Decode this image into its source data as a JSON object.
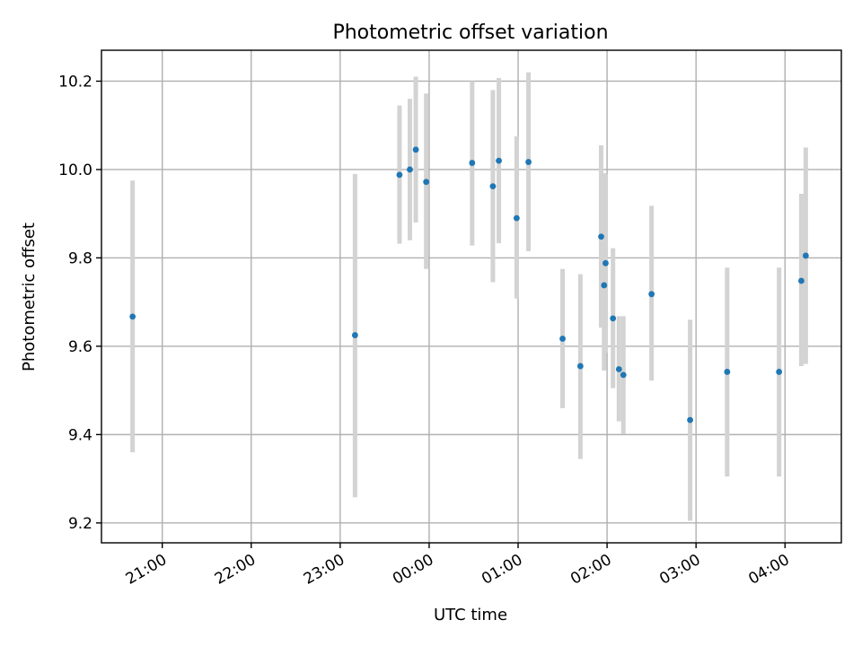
{
  "chart_data": {
    "type": "scatter",
    "title": "Photometric offset variation",
    "xlabel": "UTC time",
    "ylabel": "Photometric offset",
    "grid": true,
    "x_is_time": true,
    "xlim": [
      "20:19",
      "04:38"
    ],
    "ylim": [
      9.155,
      10.27
    ],
    "x_ticks": [
      "21:00",
      "22:00",
      "23:00",
      "00:00",
      "01:00",
      "02:00",
      "03:00",
      "04:00"
    ],
    "y_ticks": [
      9.2,
      9.4,
      9.6,
      9.8,
      10.0,
      10.2
    ],
    "y_tick_labels": [
      "9.2",
      "9.4",
      "9.6",
      "9.8",
      "10.0",
      "10.2"
    ],
    "colors": {
      "points": "#1f77b4",
      "errorbars": "#d3d3d3",
      "grid": "#b0b0b0"
    },
    "points": [
      {
        "x": "20:40",
        "y": 9.667,
        "ylo": 9.36,
        "yhi": 9.975
      },
      {
        "x": "23:10",
        "y": 9.625,
        "ylo": 9.258,
        "yhi": 9.99
      },
      {
        "x": "23:40",
        "y": 9.988,
        "ylo": 9.832,
        "yhi": 10.145
      },
      {
        "x": "23:47",
        "y": 10.0,
        "ylo": 9.84,
        "yhi": 10.16
      },
      {
        "x": "23:51",
        "y": 10.045,
        "ylo": 9.88,
        "yhi": 10.21
      },
      {
        "x": "23:58",
        "y": 9.972,
        "ylo": 9.775,
        "yhi": 10.172
      },
      {
        "x": "00:29",
        "y": 10.015,
        "ylo": 9.828,
        "yhi": 10.2
      },
      {
        "x": "00:43",
        "y": 9.962,
        "ylo": 9.745,
        "yhi": 10.18
      },
      {
        "x": "00:47",
        "y": 10.02,
        "ylo": 9.833,
        "yhi": 10.207
      },
      {
        "x": "00:59",
        "y": 9.89,
        "ylo": 9.708,
        "yhi": 10.075
      },
      {
        "x": "01:07",
        "y": 10.017,
        "ylo": 9.815,
        "yhi": 10.22
      },
      {
        "x": "01:30",
        "y": 9.617,
        "ylo": 9.46,
        "yhi": 9.775
      },
      {
        "x": "01:42",
        "y": 9.555,
        "ylo": 9.345,
        "yhi": 9.763
      },
      {
        "x": "01:56",
        "y": 9.848,
        "ylo": 9.642,
        "yhi": 10.055
      },
      {
        "x": "01:58",
        "y": 9.738,
        "ylo": 9.545,
        "yhi": 9.992
      },
      {
        "x": "01:59",
        "y": 9.788,
        "ylo": 9.585,
        "yhi": 9.99
      },
      {
        "x": "02:04",
        "y": 9.663,
        "ylo": 9.505,
        "yhi": 9.822
      },
      {
        "x": "02:08",
        "y": 9.548,
        "ylo": 9.43,
        "yhi": 9.668
      },
      {
        "x": "02:11",
        "y": 9.535,
        "ylo": 9.402,
        "yhi": 9.668
      },
      {
        "x": "02:30",
        "y": 9.718,
        "ylo": 9.522,
        "yhi": 9.918
      },
      {
        "x": "02:56",
        "y": 9.433,
        "ylo": 9.205,
        "yhi": 9.66
      },
      {
        "x": "03:21",
        "y": 9.542,
        "ylo": 9.305,
        "yhi": 9.778
      },
      {
        "x": "03:56",
        "y": 9.542,
        "ylo": 9.305,
        "yhi": 9.778
      },
      {
        "x": "04:11",
        "y": 9.748,
        "ylo": 9.555,
        "yhi": 9.945
      },
      {
        "x": "04:14",
        "y": 9.805,
        "ylo": 9.56,
        "yhi": 10.05
      }
    ]
  }
}
